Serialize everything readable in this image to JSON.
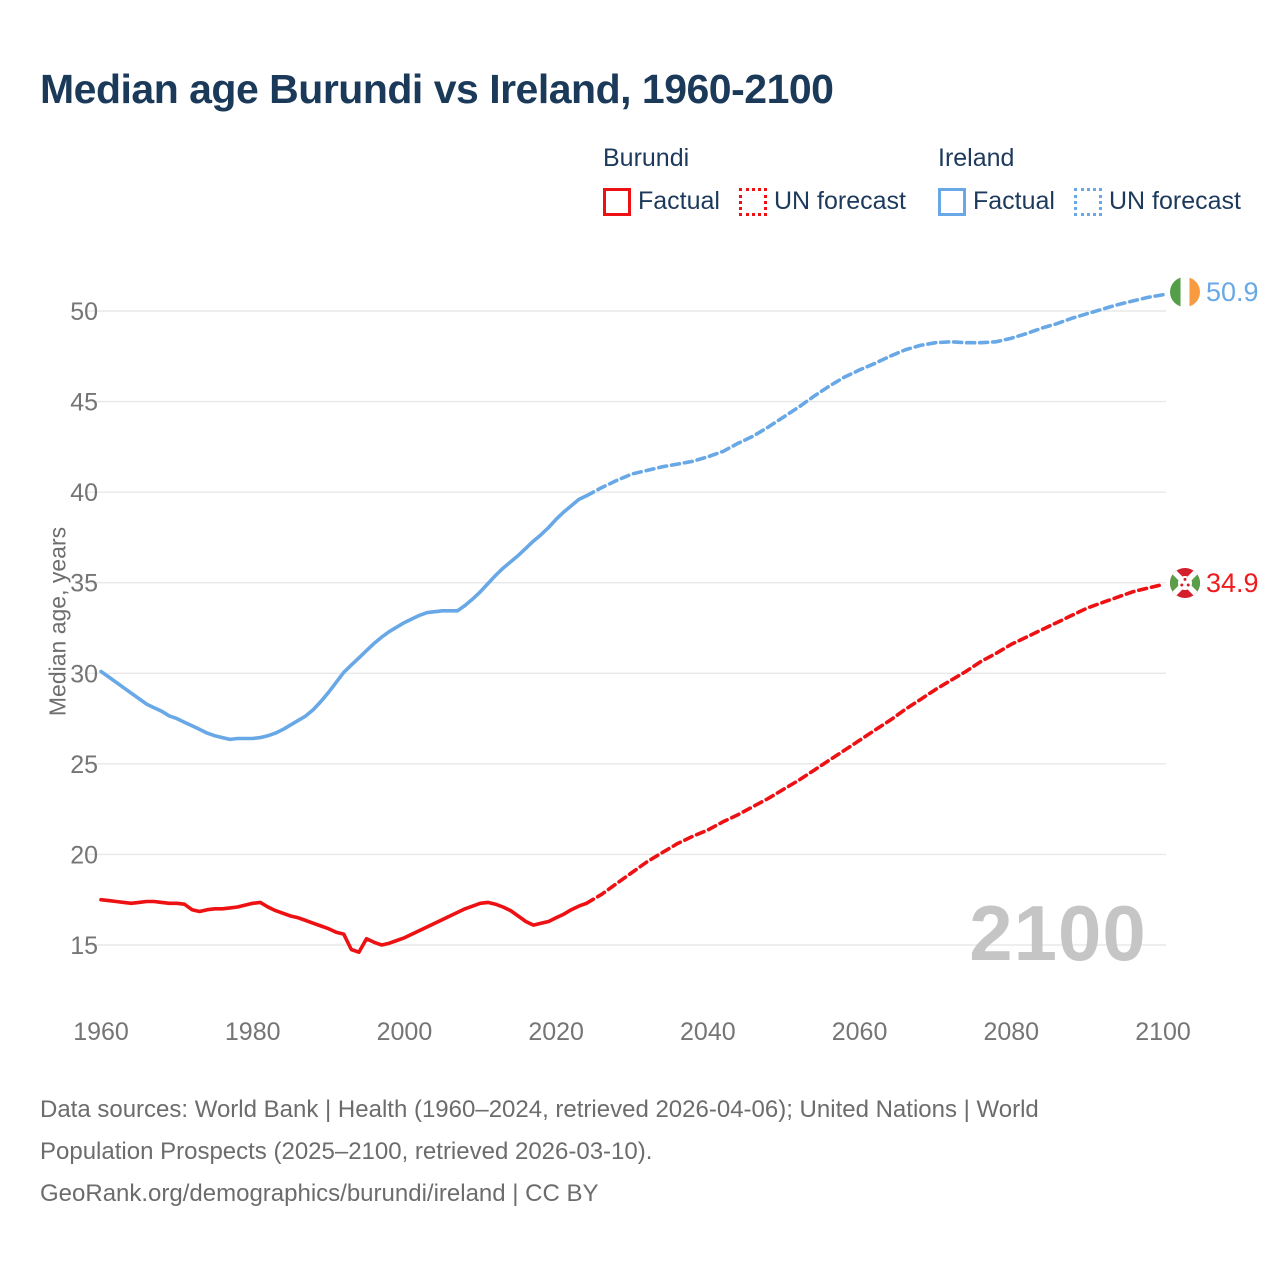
{
  "title": "Median age Burundi vs Ireland, 1960-2100",
  "legend": {
    "burundi": {
      "header": "Burundi",
      "factual_label": "Factual",
      "forecast_label": "UN forecast",
      "color": "#ee1114"
    },
    "ireland": {
      "header": "Ireland",
      "factual_label": "Factual",
      "forecast_label": "UN forecast",
      "color": "#69a8e6"
    }
  },
  "watermark": "2100",
  "endpoints": {
    "ireland": {
      "value": "50.9",
      "flag": "ireland-flag"
    },
    "burundi": {
      "value": "34.9",
      "flag": "burundi-flag"
    }
  },
  "footer": {
    "lines": [
      "Data sources: World Bank | Health (1960–2024, retrieved 2026-04-06); United Nations | World",
      "Population Prospects (2025–2100, retrieved 2026-03-10).",
      "GeoRank.org/demographics/burundi/ireland | CC BY"
    ]
  },
  "chart_data": {
    "type": "line",
    "title": "Median age Burundi vs Ireland, 1960-2100",
    "xlabel": "",
    "ylabel": "Median age, years",
    "xlim": [
      1960,
      2100
    ],
    "ylim": [
      15,
      50
    ],
    "xticks": [
      1960,
      1980,
      2000,
      2020,
      2040,
      2060,
      2080,
      2100
    ],
    "yticks": [
      15,
      20,
      25,
      30,
      35,
      40,
      45,
      50
    ],
    "grid": "horizontal",
    "legend_position": "top",
    "colors": {
      "burundi": "#ee1114",
      "ireland": "#69a8e6",
      "grid": "#e8e8e8",
      "ticks": "#757575"
    },
    "series": [
      {
        "name": "Ireland Factual",
        "color": "#69a8e6",
        "style": "solid",
        "points": [
          [
            1960,
            30.1
          ],
          [
            1961,
            29.8
          ],
          [
            1962,
            29.5
          ],
          [
            1963,
            29.2
          ],
          [
            1964,
            28.9
          ],
          [
            1965,
            28.6
          ],
          [
            1966,
            28.3
          ],
          [
            1967,
            28.1
          ],
          [
            1968,
            27.9
          ],
          [
            1969,
            27.65
          ],
          [
            1970,
            27.5
          ],
          [
            1971,
            27.3
          ],
          [
            1972,
            27.1
          ],
          [
            1973,
            26.9
          ],
          [
            1974,
            26.7
          ],
          [
            1975,
            26.55
          ],
          [
            1976,
            26.45
          ],
          [
            1977,
            26.35
          ],
          [
            1978,
            26.4
          ],
          [
            1979,
            26.4
          ],
          [
            1980,
            26.4
          ],
          [
            1981,
            26.45
          ],
          [
            1982,
            26.55
          ],
          [
            1983,
            26.7
          ],
          [
            1984,
            26.9
          ],
          [
            1985,
            27.15
          ],
          [
            1986,
            27.4
          ],
          [
            1987,
            27.65
          ],
          [
            1988,
            28.0
          ],
          [
            1989,
            28.45
          ],
          [
            1990,
            28.95
          ],
          [
            1991,
            29.5
          ],
          [
            1992,
            30.05
          ],
          [
            1993,
            30.45
          ],
          [
            1994,
            30.85
          ],
          [
            1995,
            31.25
          ],
          [
            1996,
            31.65
          ],
          [
            1997,
            32.0
          ],
          [
            1998,
            32.3
          ],
          [
            1999,
            32.55
          ],
          [
            2000,
            32.8
          ],
          [
            2001,
            33.0
          ],
          [
            2002,
            33.2
          ],
          [
            2003,
            33.35
          ],
          [
            2004,
            33.4
          ],
          [
            2005,
            33.45
          ],
          [
            2006,
            33.45
          ],
          [
            2007,
            33.45
          ],
          [
            2008,
            33.75
          ],
          [
            2009,
            34.1
          ],
          [
            2010,
            34.5
          ],
          [
            2011,
            34.95
          ],
          [
            2012,
            35.4
          ],
          [
            2013,
            35.8
          ],
          [
            2014,
            36.15
          ],
          [
            2015,
            36.5
          ],
          [
            2016,
            36.9
          ],
          [
            2017,
            37.3
          ],
          [
            2018,
            37.65
          ],
          [
            2019,
            38.05
          ],
          [
            2020,
            38.5
          ],
          [
            2021,
            38.9
          ],
          [
            2022,
            39.25
          ],
          [
            2023,
            39.6
          ],
          [
            2024,
            39.8
          ]
        ]
      },
      {
        "name": "Ireland UN forecast",
        "color": "#69a8e6",
        "style": "dashed",
        "points": [
          [
            2024,
            39.8
          ],
          [
            2026,
            40.25
          ],
          [
            2028,
            40.65
          ],
          [
            2030,
            41.0
          ],
          [
            2032,
            41.2
          ],
          [
            2034,
            41.4
          ],
          [
            2036,
            41.55
          ],
          [
            2038,
            41.7
          ],
          [
            2040,
            41.95
          ],
          [
            2042,
            42.25
          ],
          [
            2044,
            42.7
          ],
          [
            2046,
            43.1
          ],
          [
            2048,
            43.6
          ],
          [
            2050,
            44.15
          ],
          [
            2052,
            44.7
          ],
          [
            2054,
            45.3
          ],
          [
            2056,
            45.85
          ],
          [
            2058,
            46.35
          ],
          [
            2060,
            46.75
          ],
          [
            2062,
            47.1
          ],
          [
            2064,
            47.5
          ],
          [
            2066,
            47.85
          ],
          [
            2068,
            48.1
          ],
          [
            2070,
            48.25
          ],
          [
            2072,
            48.3
          ],
          [
            2074,
            48.25
          ],
          [
            2076,
            48.25
          ],
          [
            2078,
            48.3
          ],
          [
            2080,
            48.5
          ],
          [
            2082,
            48.75
          ],
          [
            2084,
            49.05
          ],
          [
            2086,
            49.3
          ],
          [
            2088,
            49.6
          ],
          [
            2090,
            49.85
          ],
          [
            2092,
            50.1
          ],
          [
            2094,
            50.35
          ],
          [
            2096,
            50.55
          ],
          [
            2098,
            50.75
          ],
          [
            2100,
            50.9
          ]
        ]
      },
      {
        "name": "Burundi Factual",
        "color": "#ee1114",
        "style": "solid",
        "points": [
          [
            1960,
            17.5
          ],
          [
            1961,
            17.45
          ],
          [
            1962,
            17.4
          ],
          [
            1963,
            17.35
          ],
          [
            1964,
            17.3
          ],
          [
            1965,
            17.35
          ],
          [
            1966,
            17.4
          ],
          [
            1967,
            17.4
          ],
          [
            1968,
            17.35
          ],
          [
            1969,
            17.3
          ],
          [
            1970,
            17.3
          ],
          [
            1971,
            17.25
          ],
          [
            1972,
            16.95
          ],
          [
            1973,
            16.85
          ],
          [
            1974,
            16.95
          ],
          [
            1975,
            17.0
          ],
          [
            1976,
            17.0
          ],
          [
            1977,
            17.05
          ],
          [
            1978,
            17.1
          ],
          [
            1979,
            17.2
          ],
          [
            1980,
            17.3
          ],
          [
            1981,
            17.35
          ],
          [
            1982,
            17.1
          ],
          [
            1983,
            16.9
          ],
          [
            1984,
            16.75
          ],
          [
            1985,
            16.6
          ],
          [
            1986,
            16.5
          ],
          [
            1987,
            16.35
          ],
          [
            1988,
            16.2
          ],
          [
            1989,
            16.05
          ],
          [
            1990,
            15.9
          ],
          [
            1991,
            15.7
          ],
          [
            1992,
            15.6
          ],
          [
            1993,
            14.75
          ],
          [
            1994,
            14.6
          ],
          [
            1995,
            15.35
          ],
          [
            1996,
            15.15
          ],
          [
            1997,
            15.0
          ],
          [
            1998,
            15.1
          ],
          [
            1999,
            15.25
          ],
          [
            2000,
            15.4
          ],
          [
            2001,
            15.6
          ],
          [
            2002,
            15.8
          ],
          [
            2003,
            16.0
          ],
          [
            2004,
            16.2
          ],
          [
            2005,
            16.4
          ],
          [
            2006,
            16.6
          ],
          [
            2007,
            16.8
          ],
          [
            2008,
            17.0
          ],
          [
            2009,
            17.15
          ],
          [
            2010,
            17.3
          ],
          [
            2011,
            17.35
          ],
          [
            2012,
            17.25
          ],
          [
            2013,
            17.1
          ],
          [
            2014,
            16.9
          ],
          [
            2015,
            16.6
          ],
          [
            2016,
            16.3
          ],
          [
            2017,
            16.1
          ],
          [
            2018,
            16.2
          ],
          [
            2019,
            16.3
          ],
          [
            2020,
            16.5
          ],
          [
            2021,
            16.7
          ],
          [
            2022,
            16.95
          ],
          [
            2023,
            17.15
          ],
          [
            2024,
            17.3
          ]
        ]
      },
      {
        "name": "Burundi UN forecast",
        "color": "#ee1114",
        "style": "dashed",
        "points": [
          [
            2024,
            17.3
          ],
          [
            2026,
            17.8
          ],
          [
            2028,
            18.4
          ],
          [
            2030,
            19.0
          ],
          [
            2032,
            19.6
          ],
          [
            2034,
            20.1
          ],
          [
            2036,
            20.6
          ],
          [
            2038,
            21.0
          ],
          [
            2040,
            21.35
          ],
          [
            2042,
            21.8
          ],
          [
            2044,
            22.2
          ],
          [
            2046,
            22.65
          ],
          [
            2048,
            23.1
          ],
          [
            2050,
            23.6
          ],
          [
            2052,
            24.1
          ],
          [
            2054,
            24.65
          ],
          [
            2056,
            25.2
          ],
          [
            2058,
            25.75
          ],
          [
            2060,
            26.3
          ],
          [
            2062,
            26.85
          ],
          [
            2064,
            27.4
          ],
          [
            2066,
            28.0
          ],
          [
            2068,
            28.55
          ],
          [
            2070,
            29.1
          ],
          [
            2072,
            29.6
          ],
          [
            2074,
            30.1
          ],
          [
            2076,
            30.65
          ],
          [
            2078,
            31.1
          ],
          [
            2080,
            31.6
          ],
          [
            2082,
            32.0
          ],
          [
            2084,
            32.4
          ],
          [
            2086,
            32.8
          ],
          [
            2088,
            33.2
          ],
          [
            2090,
            33.6
          ],
          [
            2092,
            33.9
          ],
          [
            2094,
            34.2
          ],
          [
            2096,
            34.5
          ],
          [
            2098,
            34.7
          ],
          [
            2100,
            34.9
          ]
        ]
      }
    ],
    "end_labels": [
      {
        "series": "Ireland UN forecast",
        "text": "50.9"
      },
      {
        "series": "Burundi UN forecast",
        "text": "34.9"
      }
    ]
  }
}
